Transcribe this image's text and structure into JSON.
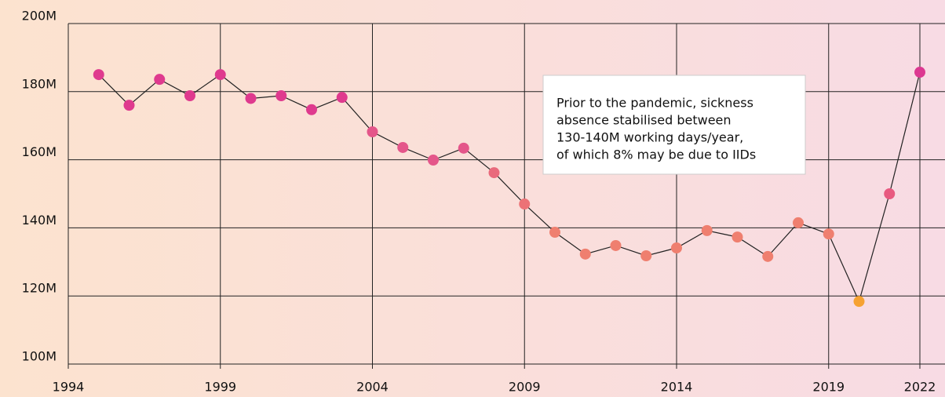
{
  "chart_data": {
    "type": "line",
    "x": [
      1995,
      1996,
      1997,
      1998,
      1999,
      2000,
      2001,
      2002,
      2003,
      2004,
      2005,
      2006,
      2007,
      2008,
      2009,
      2010,
      2011,
      2012,
      2013,
      2014,
      2015,
      2016,
      2017,
      2018,
      2019,
      2020,
      2021,
      2022
    ],
    "values": [
      185,
      176,
      183.6,
      178.8,
      185,
      178,
      178.8,
      174.7,
      178.3,
      168.2,
      163.6,
      159.9,
      163.4,
      156.2,
      147,
      138.7,
      132.3,
      134.8,
      131.8,
      134.1,
      139.2,
      137.3,
      131.6,
      141.5,
      138.2,
      118.4,
      150,
      185.7
    ],
    "point_colors": [
      "#df3a8e",
      "#df3a8e",
      "#df3a8e",
      "#df3a8e",
      "#df3a8e",
      "#df3a8e",
      "#df3a8e",
      "#df3a8e",
      "#df3a8e",
      "#e4568a",
      "#e4568a",
      "#e4568a",
      "#e4568a",
      "#e96a7c",
      "#ec7276",
      "#ef7f6f",
      "#ef7f6f",
      "#ef7f6f",
      "#ef7f6f",
      "#ef7f6f",
      "#ef7f6f",
      "#ef7f6f",
      "#ef7f6f",
      "#ef7f6f",
      "#ef7f6f",
      "#f6a232",
      "#e85a80",
      "#dc3891"
    ],
    "line_color": "#222222",
    "xlim": [
      1994,
      2022
    ],
    "xticks": [
      1994,
      1999,
      2004,
      2009,
      2014,
      2019,
      2022
    ],
    "ylim": [
      100,
      200
    ],
    "yticks": [
      {
        "value": 100,
        "label": "100M"
      },
      {
        "value": 120,
        "label": "120M"
      },
      {
        "value": 140,
        "label": "140M"
      },
      {
        "value": 160,
        "label": "160M"
      },
      {
        "value": 180,
        "label": "180M"
      },
      {
        "value": 200,
        "label": "200M"
      }
    ],
    "grid": true,
    "annotation": [
      "Prior to the pandemic, sickness",
      "absence stabilised between",
      "130-140M working days/year,",
      "of which 8% may be due to IIDs"
    ]
  }
}
